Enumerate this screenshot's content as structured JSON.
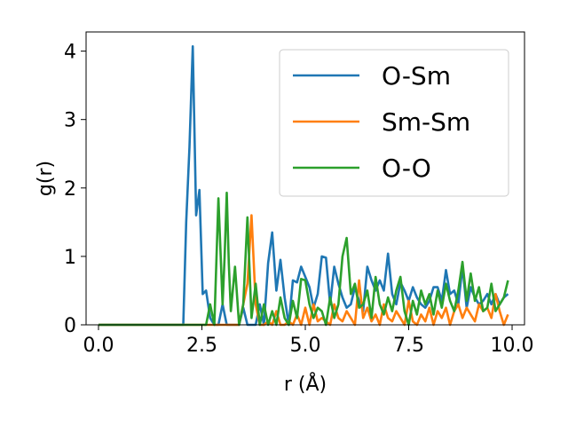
{
  "chart_data": {
    "type": "line",
    "title": "",
    "xlabel": "r (Å)",
    "ylabel": "g(r)",
    "xlim": [
      -0.3,
      10.3
    ],
    "ylim": [
      0,
      4.28
    ],
    "xticks": [
      {
        "value": 0.0,
        "label": "0.0"
      },
      {
        "value": 2.5,
        "label": "2.5"
      },
      {
        "value": 5.0,
        "label": "5.0"
      },
      {
        "value": 7.5,
        "label": "7.5"
      },
      {
        "value": 10.0,
        "label": "10.0"
      }
    ],
    "yticks": [
      {
        "value": 0,
        "label": "0"
      },
      {
        "value": 1,
        "label": "1"
      },
      {
        "value": 2,
        "label": "2"
      },
      {
        "value": 3,
        "label": "3"
      },
      {
        "value": 4,
        "label": "4"
      }
    ],
    "grid": false,
    "legend_position": "top-right",
    "series": [
      {
        "name": "O-Sm",
        "color": "#1f77b4",
        "x": [
          0.0,
          2.05,
          2.12,
          2.2,
          2.28,
          2.36,
          2.44,
          2.52,
          2.6,
          2.7,
          2.8,
          2.9,
          3.0,
          3.1,
          3.2,
          3.3,
          3.4,
          3.5,
          3.6,
          3.7,
          3.8,
          3.9,
          4.0,
          4.1,
          4.2,
          4.3,
          4.4,
          4.5,
          4.6,
          4.7,
          4.8,
          4.9,
          5.0,
          5.1,
          5.2,
          5.3,
          5.4,
          5.5,
          5.6,
          5.7,
          5.8,
          5.9,
          6.0,
          6.1,
          6.2,
          6.3,
          6.4,
          6.5,
          6.6,
          6.7,
          6.8,
          6.9,
          7.0,
          7.1,
          7.2,
          7.3,
          7.4,
          7.5,
          7.6,
          7.7,
          7.8,
          7.9,
          8.0,
          8.1,
          8.2,
          8.3,
          8.4,
          8.5,
          8.6,
          8.7,
          8.8,
          8.9,
          9.0,
          9.1,
          9.2,
          9.3,
          9.4,
          9.5,
          9.6,
          9.7,
          9.8,
          9.9
        ],
        "y": [
          0.0,
          0.0,
          1.5,
          2.6,
          4.07,
          1.6,
          1.97,
          0.45,
          0.5,
          0.1,
          0.0,
          0.0,
          0.3,
          0.0,
          0.0,
          0.0,
          0.0,
          0.25,
          0.0,
          0.0,
          0.0,
          0.3,
          0.0,
          0.9,
          1.35,
          0.5,
          0.95,
          0.4,
          0.0,
          0.65,
          0.62,
          0.85,
          0.7,
          0.55,
          0.25,
          0.45,
          1.0,
          0.98,
          0.3,
          0.85,
          0.6,
          0.4,
          0.25,
          0.3,
          0.55,
          0.35,
          0.2,
          0.85,
          0.65,
          0.5,
          0.65,
          0.5,
          1.04,
          0.45,
          0.3,
          0.62,
          0.5,
          0.35,
          0.55,
          0.4,
          0.3,
          0.25,
          0.35,
          0.55,
          0.55,
          0.35,
          0.8,
          0.45,
          0.5,
          0.3,
          0.85,
          0.25,
          0.55,
          0.4,
          0.3,
          0.35,
          0.45,
          0.3,
          0.45,
          0.3,
          0.4,
          0.45
        ]
      },
      {
        "name": "Sm-Sm",
        "color": "#ff7f0e",
        "x": [
          0.0,
          3.4,
          3.5,
          3.6,
          3.7,
          3.8,
          3.9,
          4.0,
          4.1,
          4.2,
          4.3,
          4.4,
          4.5,
          4.6,
          4.7,
          4.8,
          4.9,
          5.0,
          5.1,
          5.2,
          5.3,
          5.4,
          5.5,
          5.6,
          5.7,
          5.8,
          5.9,
          6.0,
          6.1,
          6.2,
          6.3,
          6.4,
          6.5,
          6.6,
          6.7,
          6.8,
          6.9,
          7.0,
          7.1,
          7.2,
          7.3,
          7.4,
          7.5,
          7.6,
          7.7,
          7.8,
          7.9,
          8.0,
          8.1,
          8.2,
          8.3,
          8.4,
          8.5,
          8.6,
          8.7,
          8.8,
          8.9,
          9.0,
          9.1,
          9.2,
          9.3,
          9.4,
          9.5,
          9.6,
          9.7,
          9.8,
          9.9
        ],
        "y": [
          0.0,
          0.0,
          0.3,
          0.6,
          1.6,
          0.3,
          0.0,
          0.0,
          0.05,
          0.0,
          0.2,
          0.0,
          0.0,
          0.05,
          0.0,
          0.15,
          0.0,
          0.25,
          0.0,
          0.3,
          0.05,
          0.1,
          0.05,
          0.0,
          0.3,
          0.1,
          0.05,
          0.2,
          0.1,
          0.0,
          0.65,
          0.1,
          0.25,
          0.05,
          0.15,
          0.0,
          0.3,
          0.1,
          0.05,
          0.2,
          0.1,
          0.0,
          0.35,
          0.05,
          0.0,
          0.15,
          0.05,
          0.25,
          0.0,
          0.2,
          0.1,
          0.25,
          0.0,
          0.2,
          0.3,
          0.1,
          0.25,
          0.15,
          0.05,
          0.3,
          0.2,
          0.25,
          0.1,
          0.45,
          0.2,
          0.0,
          0.15
        ]
      },
      {
        "name": "O-O",
        "color": "#2ca02c",
        "x": [
          0.0,
          2.5,
          2.6,
          2.7,
          2.8,
          2.9,
          3.0,
          3.05,
          3.1,
          3.15,
          3.2,
          3.3,
          3.4,
          3.5,
          3.6,
          3.7,
          3.8,
          3.9,
          4.0,
          4.1,
          4.2,
          4.3,
          4.4,
          4.5,
          4.6,
          4.7,
          4.8,
          4.9,
          5.0,
          5.1,
          5.2,
          5.3,
          5.4,
          5.5,
          5.6,
          5.7,
          5.8,
          5.9,
          6.0,
          6.1,
          6.2,
          6.3,
          6.4,
          6.5,
          6.6,
          6.7,
          6.8,
          6.9,
          7.0,
          7.1,
          7.2,
          7.3,
          7.4,
          7.5,
          7.6,
          7.7,
          7.8,
          7.9,
          8.0,
          8.1,
          8.2,
          8.3,
          8.4,
          8.5,
          8.6,
          8.7,
          8.8,
          8.9,
          9.0,
          9.1,
          9.2,
          9.3,
          9.4,
          9.5,
          9.6,
          9.7,
          9.8,
          9.9
        ],
        "y": [
          0.0,
          0.0,
          0.0,
          0.3,
          0.0,
          1.85,
          0.3,
          1.0,
          1.93,
          0.9,
          0.2,
          0.85,
          0.0,
          0.3,
          1.57,
          0.1,
          0.6,
          0.0,
          0.3,
          0.0,
          0.2,
          0.0,
          0.4,
          0.1,
          0.0,
          0.35,
          0.1,
          0.67,
          0.65,
          0.3,
          0.1,
          0.25,
          0.2,
          0.0,
          0.4,
          0.1,
          0.3,
          1.0,
          1.27,
          0.45,
          0.6,
          0.25,
          0.3,
          0.5,
          0.1,
          0.7,
          0.3,
          0.15,
          0.4,
          0.2,
          0.5,
          0.7,
          0.2,
          0.0,
          0.35,
          0.15,
          0.5,
          0.3,
          0.45,
          0.15,
          0.5,
          0.25,
          0.6,
          0.35,
          0.2,
          0.5,
          0.92,
          0.35,
          0.75,
          0.35,
          0.55,
          0.2,
          0.25,
          0.6,
          0.2,
          0.3,
          0.4,
          0.65
        ]
      }
    ]
  }
}
